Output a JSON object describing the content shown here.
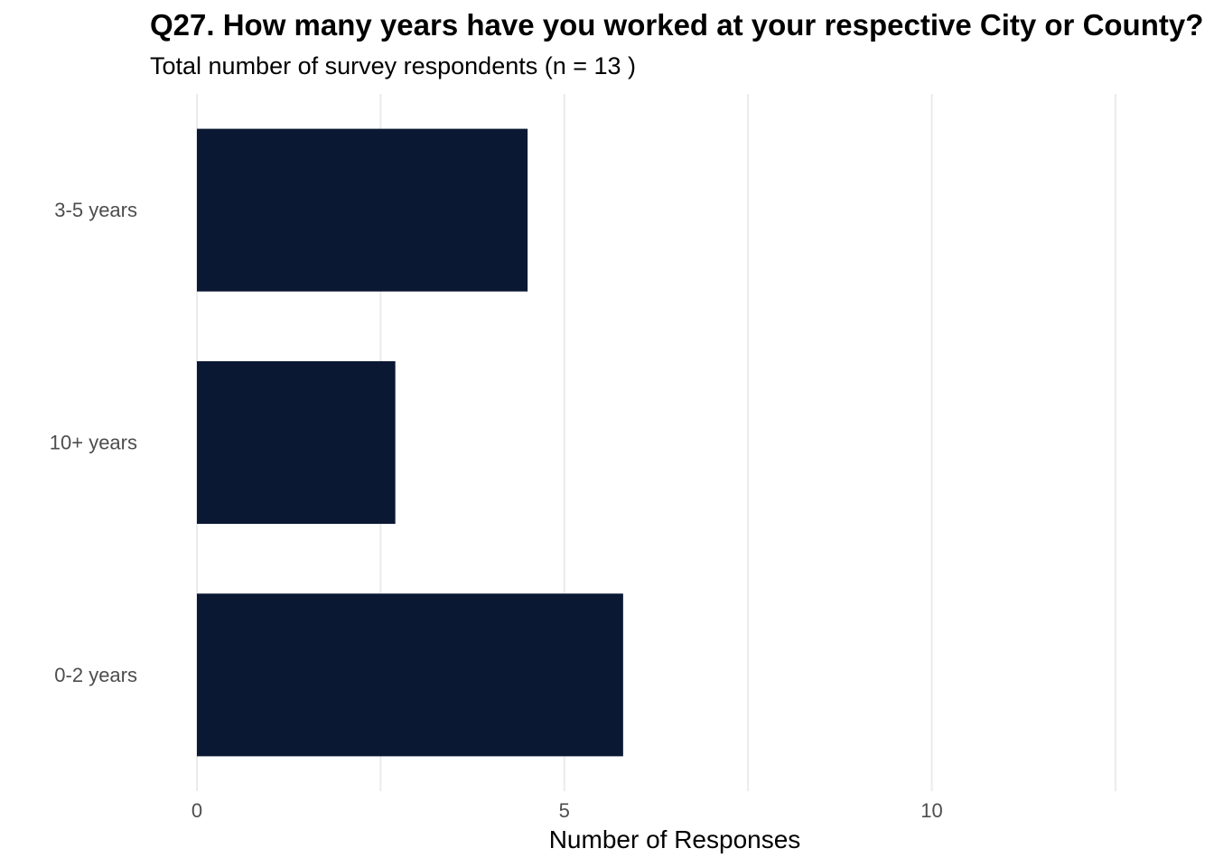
{
  "chart_data": {
    "type": "bar",
    "orientation": "horizontal",
    "title": "Q27. How many years have you worked at your respective City or County?",
    "subtitle": "Total number of survey respondents (n = 13 )",
    "xlabel": "Number of Responses",
    "ylabel": "",
    "categories": [
      "3-5 years",
      "10+ years",
      "0-2 years"
    ],
    "values": [
      4.5,
      2.7,
      5.8
    ],
    "xlim": [
      0,
      13.3
    ],
    "x_ticks": [
      0,
      5,
      10
    ],
    "x_tick_labels": [
      "0",
      "5",
      "10"
    ],
    "grid": true,
    "legend": "none",
    "colors": {
      "bar": "#0a1833",
      "grid": "#ebebeb",
      "tick_text": "#4d4d4d",
      "background": "#ffffff"
    }
  }
}
